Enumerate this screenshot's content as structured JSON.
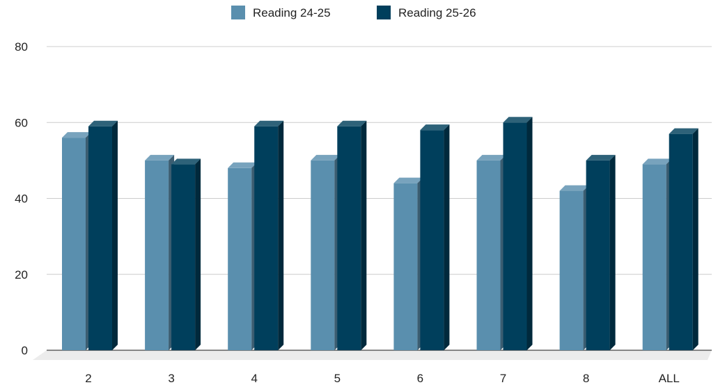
{
  "chart_data": {
    "type": "bar",
    "title": "",
    "xlabel": "",
    "ylabel": "",
    "categories": [
      "2",
      "3",
      "4",
      "5",
      "6",
      "7",
      "8",
      "ALL"
    ],
    "series": [
      {
        "name": "Reading 24-25",
        "values": [
          56,
          50,
          48,
          50,
          44,
          50,
          42,
          49
        ],
        "color": "#5a8fae"
      },
      {
        "name": "Reading 25-26",
        "values": [
          59,
          49,
          59,
          59,
          58,
          60,
          50,
          57
        ],
        "color": "#003f5c"
      }
    ],
    "ylim": [
      0,
      80
    ],
    "yticks": [
      "0",
      "20",
      "40",
      "60",
      "80"
    ],
    "grid": true,
    "legend_position": "top",
    "style": "3d-bar"
  }
}
